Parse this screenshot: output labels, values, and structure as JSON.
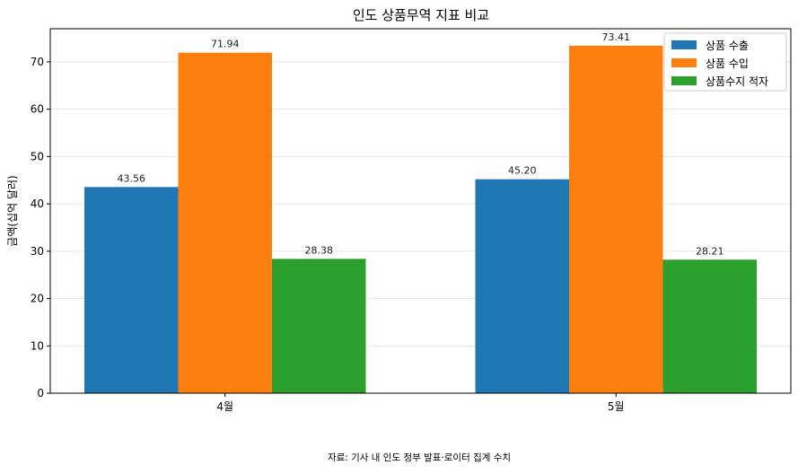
{
  "chart_data": {
    "type": "bar",
    "title": "인도 상품무역 지표 비교",
    "xlabel": "",
    "ylabel": "금액(십억 달러)",
    "categories": [
      "4월",
      "5월"
    ],
    "series": [
      {
        "name": "상품 수출",
        "values": [
          43.56,
          45.2
        ],
        "labels": [
          "43.56",
          "45.20"
        ],
        "color": "#1f77b4"
      },
      {
        "name": "상품 수입",
        "values": [
          71.94,
          73.41
        ],
        "labels": [
          "71.94",
          "73.41"
        ],
        "color": "#ff7f0e"
      },
      {
        "name": "상품수지 적자",
        "values": [
          28.38,
          28.21
        ],
        "labels": [
          "28.38",
          "28.21"
        ],
        "color": "#2ca02c"
      }
    ],
    "ylim": [
      0,
      77
    ],
    "yticks": [
      0,
      10,
      20,
      30,
      40,
      50,
      60,
      70
    ],
    "grid": "y",
    "legend": "top-right"
  },
  "source_note": "자료: 기사 내 인도 정부 발표·로이터 집계 수치"
}
